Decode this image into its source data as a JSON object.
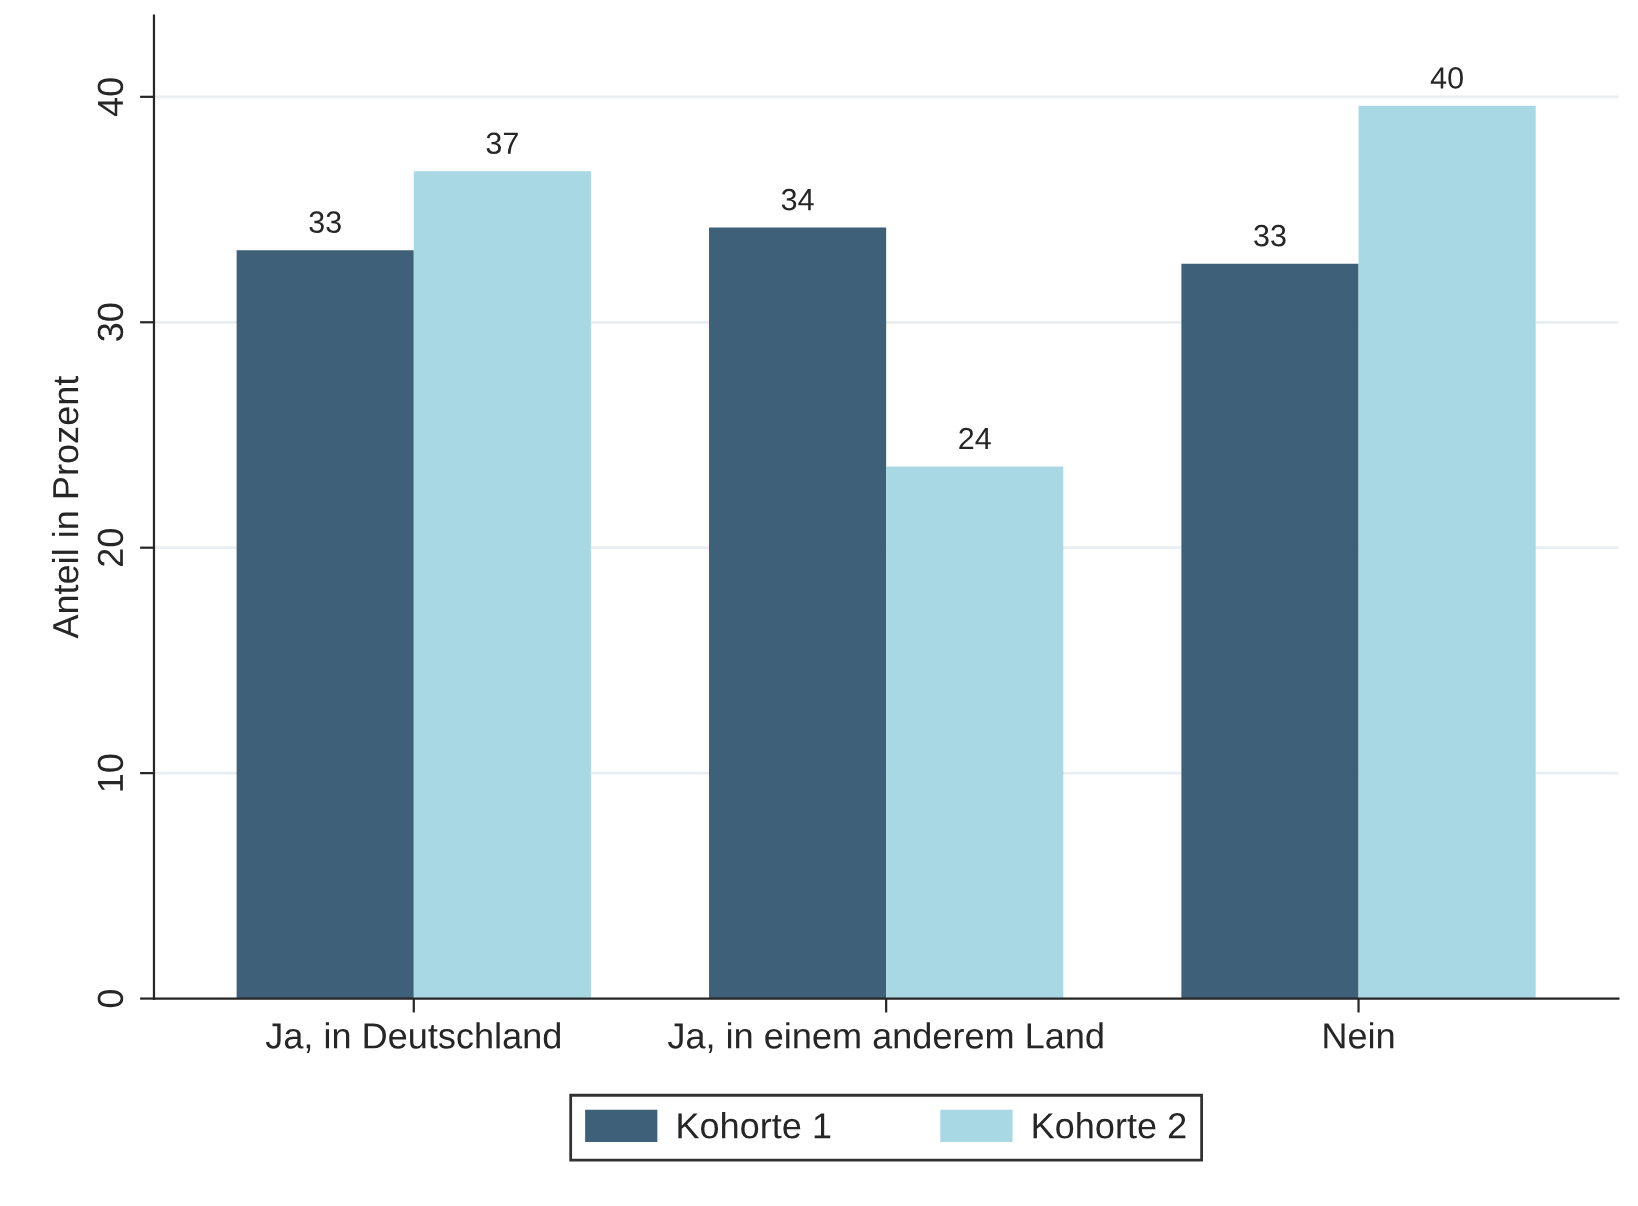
{
  "chart_data": {
    "type": "bar",
    "ylabel": "Anteil in Prozent",
    "categories": [
      "Ja, in Deutschland",
      "Ja, in einem anderem Land",
      "Nein"
    ],
    "series": [
      {
        "name": "Kohorte 1",
        "color": "#3e6079",
        "values": [
          33.2,
          34.2,
          32.6
        ],
        "value_labels": [
          "33",
          "34",
          "33"
        ]
      },
      {
        "name": "Kohorte 2",
        "color": "#a8d8e4",
        "values": [
          36.7,
          23.6,
          39.6
        ],
        "value_labels": [
          "37",
          "24",
          "40"
        ]
      }
    ],
    "ylim": [
      0,
      43.6
    ],
    "yticks": [
      0,
      10,
      20,
      30,
      40
    ],
    "grid": "y",
    "legend": "bottom"
  }
}
